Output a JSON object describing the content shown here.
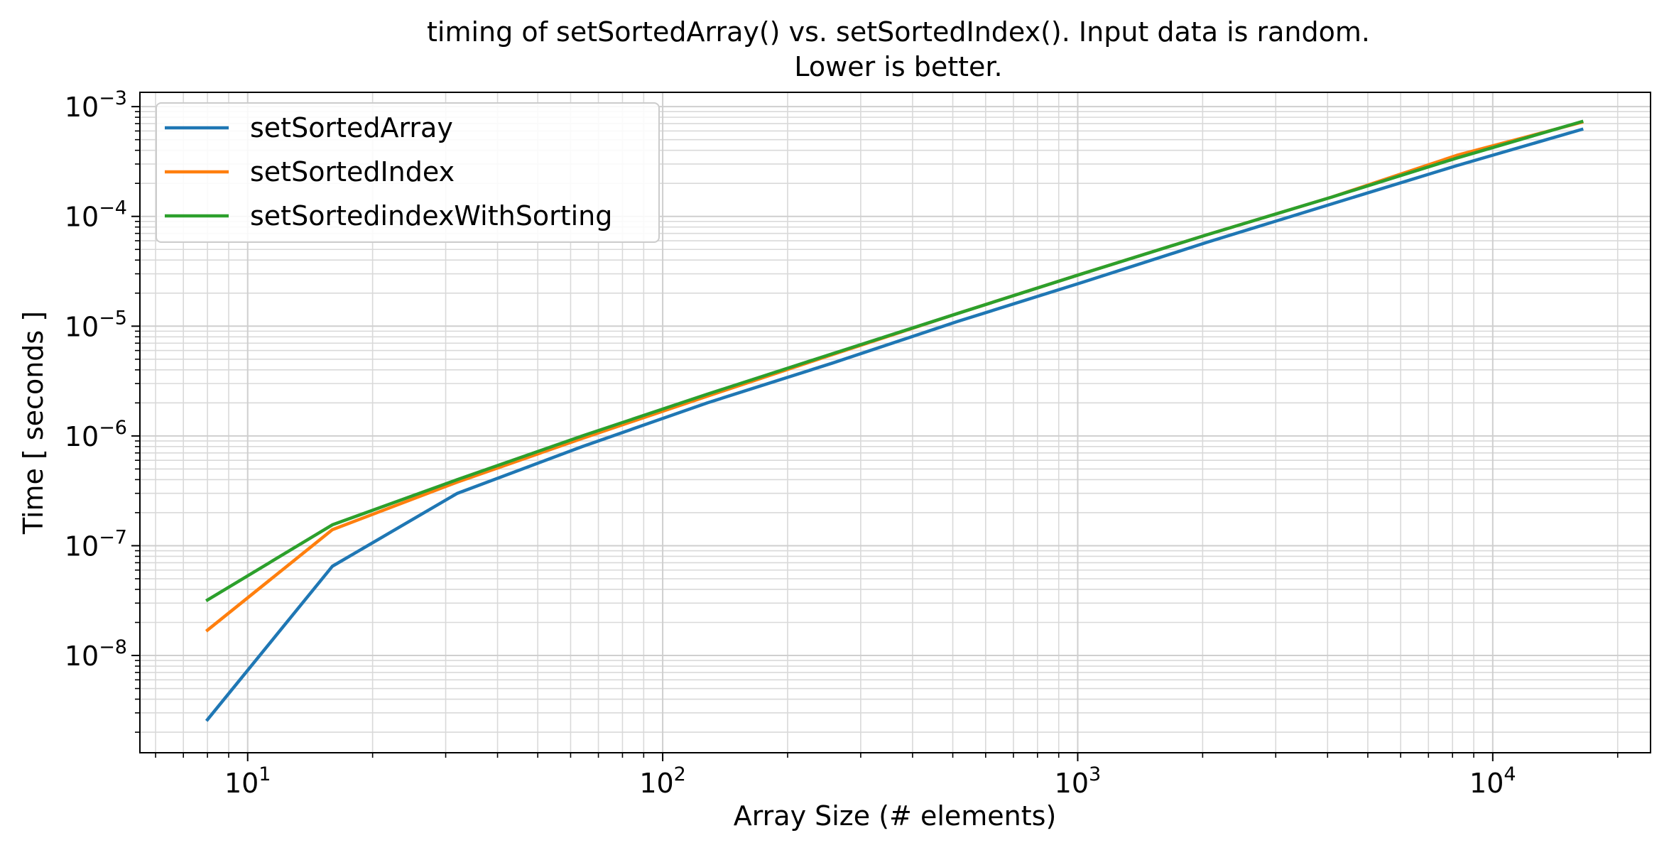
{
  "chart_data": {
    "type": "line",
    "title_lines": [
      "timing of setSortedArray() vs. setSortedIndex(). Input data is random.",
      "Lower is better."
    ],
    "xlabel": "Array Size (# elements)",
    "ylabel": "Time [ seconds ]",
    "xscale": "log",
    "yscale": "log",
    "xlim": [
      5.5,
      24000
    ],
    "ylim": [
      1.3e-09,
      0.00135
    ],
    "x_ticks": [
      {
        "value": 10,
        "base": "10",
        "exp": "1"
      },
      {
        "value": 100,
        "base": "10",
        "exp": "2"
      },
      {
        "value": 1000,
        "base": "10",
        "exp": "3"
      },
      {
        "value": 10000,
        "base": "10",
        "exp": "4"
      }
    ],
    "y_ticks": [
      {
        "value": 1e-08,
        "base": "10",
        "exp": "−8"
      },
      {
        "value": 1e-07,
        "base": "10",
        "exp": "−7"
      },
      {
        "value": 1e-06,
        "base": "10",
        "exp": "−6"
      },
      {
        "value": 1e-05,
        "base": "10",
        "exp": "−5"
      },
      {
        "value": 0.0001,
        "base": "10",
        "exp": "−4"
      },
      {
        "value": 0.001,
        "base": "10",
        "exp": "−3"
      }
    ],
    "grid": "both major and minor",
    "legend_position": "top-left",
    "x": [
      8,
      16,
      32,
      64,
      128,
      256,
      512,
      1024,
      2048,
      4096,
      8192,
      16384
    ],
    "series": [
      {
        "name": "setSortedArray",
        "color": "#1f77b4",
        "values": [
          2.6e-09,
          6.5e-08,
          3e-07,
          8e-07,
          2e-06,
          4.6e-06,
          1.1e-05,
          2.5e-05,
          5.8e-05,
          0.00013,
          0.00029,
          0.00062
        ]
      },
      {
        "name": "setSortedIndex",
        "color": "#ff7f0e",
        "values": [
          1.7e-08,
          1.4e-07,
          3.8e-07,
          9.5e-07,
          2.3e-06,
          5.5e-06,
          1.3e-05,
          3e-05,
          6.8e-05,
          0.00015,
          0.00036,
          0.00072
        ]
      },
      {
        "name": "setSortedindexWithSorting",
        "color": "#2ca02c",
        "values": [
          3.2e-08,
          1.55e-07,
          4e-07,
          1e-06,
          2.4e-06,
          5.6e-06,
          1.3e-05,
          3e-05,
          6.8e-05,
          0.00015,
          0.00034,
          0.00073
        ]
      }
    ]
  }
}
